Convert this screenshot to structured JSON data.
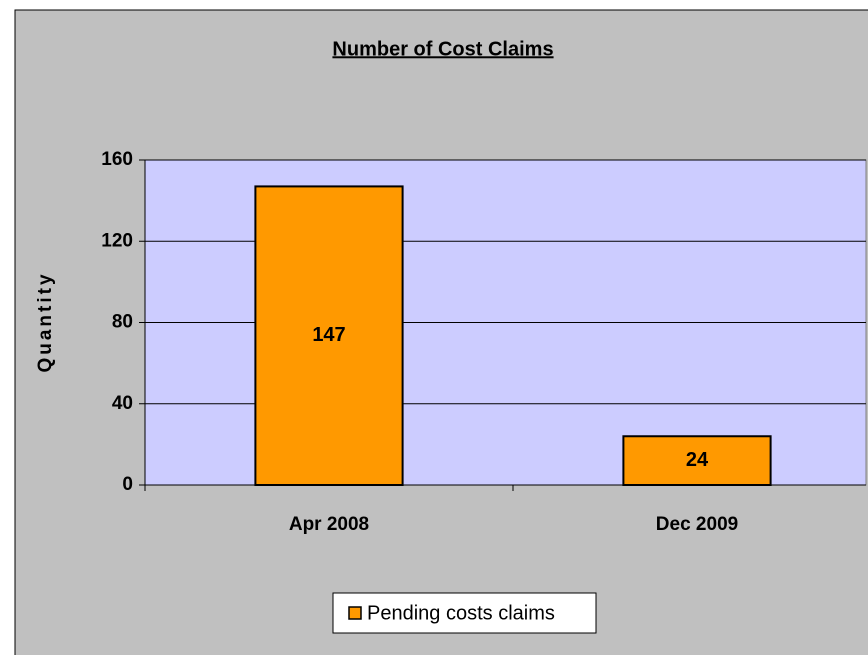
{
  "chart_data": {
    "type": "bar",
    "title": "Number of Cost Claims",
    "y_label": "Quantity",
    "categories": [
      "Apr 2008",
      "Dec 2009"
    ],
    "series": [
      {
        "name": "Pending costs claims",
        "color": "#FF9900",
        "values": [
          147,
          24
        ]
      }
    ],
    "ylim": [
      0,
      160
    ],
    "yticks": [
      0,
      40,
      80,
      120,
      160
    ],
    "grid": true,
    "legend": "bottom"
  }
}
